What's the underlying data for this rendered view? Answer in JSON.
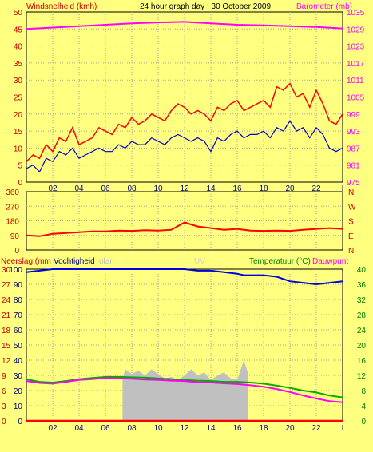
{
  "header": {
    "wind_label": "Windsnelheid (kmh)",
    "title": "24 hour graph day : 30 October 2009",
    "baro_label": "Barometer (mb)"
  },
  "colors": {
    "background": "#ffff80",
    "frame": "#000000",
    "grid": "#a0a0a0",
    "wind_gust": "#ff0000",
    "wind_avg": "#0000cc",
    "barometer": "#ff00ff",
    "direction": "#ff0000",
    "humidity": "#0000dd",
    "temperature": "#00aa00",
    "dewpoint": "#ff00ff",
    "rain": "#ff0000",
    "solar": "#c0c0c0",
    "uv": "#d0d0d0",
    "label_red": "#cc0000",
    "label_green": "#008000",
    "label_blue": "#000080"
  },
  "chart_data": [
    {
      "type": "line",
      "panel": "wind-barometer",
      "x_ticks": [
        "02",
        "04",
        "06",
        "08",
        "10",
        "12",
        "14",
        "16",
        "18",
        "20",
        "22",
        "I"
      ],
      "y_left_label": "Windsnelheid (kmh)",
      "y_left_ticks": [
        "0",
        "5",
        "10",
        "15",
        "20",
        "25",
        "30",
        "35",
        "40",
        "45",
        "50"
      ],
      "y_left_lim": [
        0,
        50
      ],
      "y_right_label": "Barometer (mb)",
      "y_right_ticks": [
        "975",
        "981",
        "987",
        "993",
        "999",
        "1005",
        "1011",
        "1017",
        "1023",
        "1029",
        "1035"
      ],
      "y_right_lim": [
        975,
        1035
      ],
      "grid": true,
      "series": [
        {
          "name": "Windsnelheid (kmh)",
          "axis": "left",
          "x": [
            0,
            0.5,
            1,
            1.5,
            2,
            2.5,
            3,
            3.5,
            4,
            4.5,
            5,
            5.5,
            6,
            6.5,
            7,
            7.5,
            8,
            8.5,
            9,
            9.5,
            10,
            10.5,
            11,
            11.5,
            12,
            12.5,
            13,
            13.5,
            14,
            14.5,
            15,
            15.5,
            16,
            16.5,
            17,
            17.5,
            18,
            18.5,
            19,
            19.5,
            20,
            20.5,
            21,
            21.5,
            22,
            22.5,
            23,
            23.5,
            24
          ],
          "values": [
            6,
            8,
            7,
            11,
            9,
            13,
            12,
            16,
            11,
            12,
            13,
            16,
            15,
            14,
            17,
            16,
            19,
            17,
            18,
            20,
            19,
            18,
            21,
            23,
            22,
            20,
            21,
            20,
            18,
            22,
            21,
            23,
            24,
            21,
            22,
            23,
            24,
            22,
            28,
            27,
            29,
            25,
            26,
            22,
            27,
            23,
            18,
            17,
            20
          ]
        },
        {
          "name": "Wind avg",
          "axis": "left",
          "x": [
            0,
            0.5,
            1,
            1.5,
            2,
            2.5,
            3,
            3.5,
            4,
            4.5,
            5,
            5.5,
            6,
            6.5,
            7,
            7.5,
            8,
            8.5,
            9,
            9.5,
            10,
            10.5,
            11,
            11.5,
            12,
            12.5,
            13,
            13.5,
            14,
            14.5,
            15,
            15.5,
            16,
            16.5,
            17,
            17.5,
            18,
            18.5,
            19,
            19.5,
            20,
            20.5,
            21,
            21.5,
            22,
            22.5,
            23,
            23.5,
            24
          ],
          "values": [
            4,
            5,
            3,
            7,
            6,
            9,
            8,
            10,
            7,
            8,
            9,
            10,
            9,
            9,
            11,
            10,
            12,
            11,
            11,
            13,
            12,
            11,
            13,
            14,
            13,
            12,
            13,
            12,
            9,
            13,
            12,
            14,
            15,
            13,
            14,
            14,
            15,
            13,
            16,
            15,
            18,
            15,
            16,
            13,
            16,
            14,
            10,
            9,
            10
          ]
        },
        {
          "name": "Barometer (mb)",
          "axis": "right",
          "x": [
            0,
            2,
            4,
            6,
            8,
            10,
            12,
            14,
            16,
            18,
            20,
            22,
            24
          ],
          "values": [
            1029,
            1029.5,
            1030,
            1030.5,
            1031,
            1031.3,
            1031.5,
            1031,
            1030.5,
            1030.3,
            1030,
            1029.7,
            1029.2
          ]
        }
      ]
    },
    {
      "type": "line",
      "panel": "wind-direction",
      "x_ticks": [
        "02",
        "04",
        "06",
        "08",
        "10",
        "12",
        "14",
        "16",
        "18",
        "20",
        "22",
        "I"
      ],
      "y_left_ticks": [
        "0",
        "90",
        "180",
        "270",
        "360"
      ],
      "y_left_lim": [
        0,
        360
      ],
      "y_right_ticks": [
        "N",
        "E",
        "S",
        "W",
        "N"
      ],
      "grid": true,
      "series": [
        {
          "name": "Wind direction",
          "x": [
            0,
            1,
            2,
            3,
            4,
            5,
            6,
            7,
            8,
            9,
            10,
            11,
            12,
            13,
            14,
            15,
            16,
            17,
            18,
            19,
            20,
            21,
            22,
            23,
            24
          ],
          "values": [
            90,
            85,
            100,
            105,
            110,
            115,
            115,
            120,
            118,
            122,
            120,
            125,
            170,
            145,
            135,
            125,
            130,
            120,
            118,
            120,
            118,
            125,
            130,
            135,
            130
          ]
        }
      ]
    },
    {
      "type": "line",
      "panel": "humidity-temperature",
      "x_ticks": [
        "02",
        "04",
        "06",
        "08",
        "10",
        "12",
        "14",
        "16",
        "18",
        "20",
        "22",
        "I"
      ],
      "y_left_label": "Neerslag (mm",
      "y_left_label_2": "Vochtigheid",
      "y_left_ticks": [
        "0",
        "10",
        "20",
        "30",
        "40",
        "50",
        "60",
        "70",
        "80",
        "90",
        "100"
      ],
      "y_left_lim": [
        0,
        100
      ],
      "y_left_ticks_red": [
        "0",
        "3",
        "6",
        "9",
        "12",
        "15",
        "18",
        "21",
        "24",
        "27",
        "30"
      ],
      "y_right_label": "Temperatuur (°C)",
      "y_right_label_2": "Dauwpunt",
      "y_right_ticks": [
        "0",
        "4",
        "8",
        "12",
        "16",
        "20",
        "24",
        "28",
        "32",
        "36",
        "40"
      ],
      "y_right_lim": [
        0,
        40
      ],
      "solar_label": "olar",
      "uv_label": "UV",
      "grid": true,
      "series": [
        {
          "name": "Vochtigheid",
          "axis": "left",
          "x": [
            0,
            1,
            2,
            4,
            6,
            8,
            10,
            12,
            13,
            14,
            15,
            16,
            16.5,
            17,
            18,
            19,
            20,
            21,
            22,
            23,
            24
          ],
          "values": [
            98,
            99,
            100,
            100,
            100,
            100,
            100,
            100,
            99,
            99,
            98,
            97,
            96,
            96,
            96,
            95,
            92,
            91,
            90,
            91,
            92
          ]
        },
        {
          "name": "Temperatuur (°C)",
          "axis": "right",
          "x": [
            0,
            1,
            2,
            3,
            4,
            5,
            6,
            7,
            8,
            9,
            10,
            11,
            12,
            13,
            14,
            15,
            16,
            17,
            18,
            19,
            20,
            21,
            22,
            23,
            24
          ],
          "values": [
            11,
            10.3,
            10.1,
            10.5,
            11,
            11.3,
            11.6,
            11.6,
            11.5,
            11.4,
            11.2,
            11,
            10.8,
            10.6,
            10.5,
            10.3,
            10.3,
            10.1,
            9.8,
            9.3,
            8.7,
            8,
            7.5,
            6.7,
            6.2
          ]
        },
        {
          "name": "Dauwpunt",
          "axis": "right",
          "x": [
            0,
            1,
            2,
            3,
            4,
            5,
            6,
            7,
            8,
            9,
            10,
            11,
            12,
            13,
            14,
            15,
            16,
            17,
            18,
            19,
            20,
            21,
            22,
            23,
            24
          ],
          "values": [
            10.5,
            10,
            9.8,
            10.3,
            10.8,
            11,
            11.3,
            11.2,
            11.1,
            10.9,
            10.8,
            10.6,
            10.5,
            10.2,
            10.1,
            9.9,
            9.7,
            9.4,
            9,
            8.4,
            7.6,
            6.7,
            5.9,
            5.2,
            4.9
          ]
        },
        {
          "name": "Neerslag (mm",
          "axis": "left",
          "x": [
            0,
            24
          ],
          "values": [
            0,
            0
          ]
        },
        {
          "name": "olar",
          "axis": "left",
          "type": "area",
          "x": [
            7.3,
            7.5,
            8,
            8.5,
            9,
            9.5,
            10,
            10.5,
            11,
            11.5,
            12,
            12.5,
            13,
            13.5,
            14,
            14.5,
            15,
            15.5,
            16,
            16.5,
            16.8
          ],
          "values": [
            28,
            34,
            31,
            33,
            30,
            34,
            31,
            28,
            29,
            27,
            30,
            34,
            30,
            32,
            27,
            30,
            32,
            28,
            27,
            40,
            32
          ]
        }
      ]
    }
  ]
}
